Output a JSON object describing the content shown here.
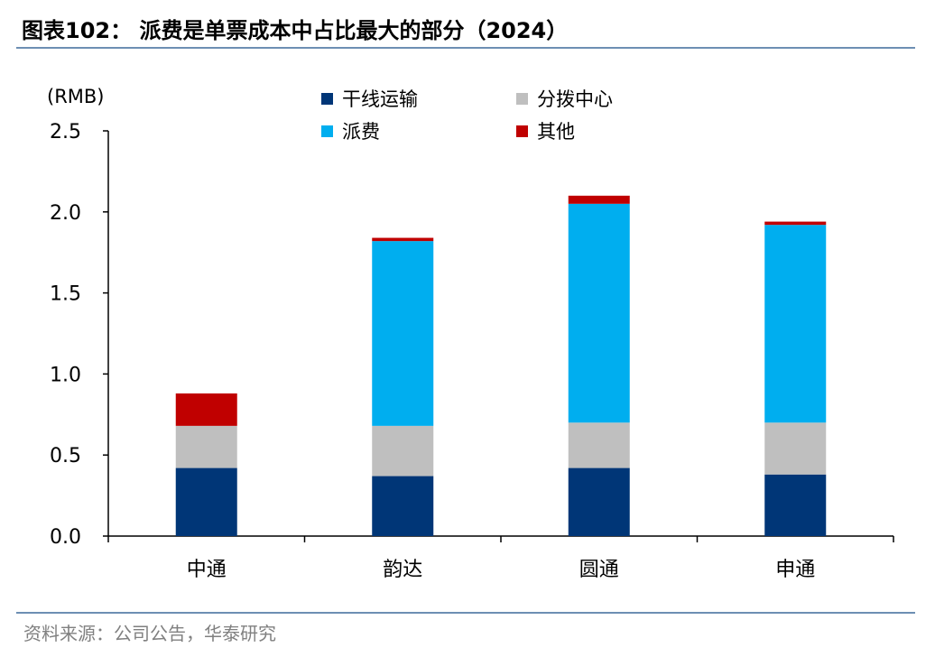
{
  "header": {
    "title": "图表102：  派费是单票成本中占比最大的部分（2024）"
  },
  "footer": {
    "source": "资料来源：公司公告，华泰研究"
  },
  "colors": {
    "trunk": "#003677",
    "sorting": "#bfbfbf",
    "delivery": "#00aeef",
    "other": "#c00000",
    "rule": "#6d8fb3"
  },
  "chart_data": {
    "type": "bar",
    "stacked": true,
    "unit_label": "(RMB)",
    "categories": [
      "中通",
      "韵达",
      "圆通",
      "申通"
    ],
    "series": [
      {
        "name": "干线运输",
        "color": "#003677",
        "values": [
          0.42,
          0.37,
          0.42,
          0.38
        ]
      },
      {
        "name": "分拨中心",
        "color": "#bfbfbf",
        "values": [
          0.26,
          0.31,
          0.28,
          0.32
        ]
      },
      {
        "name": "派费",
        "color": "#00aeef",
        "values": [
          0.0,
          1.14,
          1.35,
          1.22
        ]
      },
      {
        "name": "其他",
        "color": "#c00000",
        "values": [
          0.2,
          0.02,
          0.05,
          0.02
        ]
      }
    ],
    "ylim": [
      0,
      2.5
    ],
    "yticks": [
      "0.0",
      "0.5",
      "1.0",
      "1.5",
      "2.0",
      "2.5"
    ],
    "grid": false,
    "legend_position": "top"
  }
}
